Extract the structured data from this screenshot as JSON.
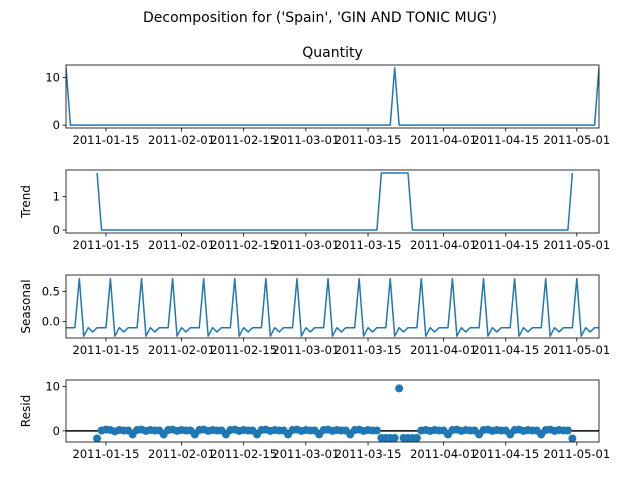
{
  "chart_data": {
    "type": "line",
    "title": "Decomposition for ('Spain', 'GIN AND TONIC MUG')",
    "x_range": [
      "2011-01-06",
      "2011-05-06"
    ],
    "x_ticks": [
      "2011-01-15",
      "2011-02-01",
      "2011-02-15",
      "2011-03-01",
      "2011-03-15",
      "2011-04-01",
      "2011-04-15",
      "2011-05-01"
    ],
    "panels": [
      {
        "key": "observed",
        "kind": "line",
        "title": "Quantity",
        "ylabel": "",
        "ylim": [
          -0.6,
          12.6
        ],
        "yticks": [
          "0",
          "10"
        ],
        "ytick_values": [
          0,
          10
        ],
        "points": [
          [
            "2011-01-06",
            12
          ],
          [
            "2011-01-07",
            0
          ],
          [
            "2011-03-20",
            0
          ],
          [
            "2011-03-21",
            12
          ],
          [
            "2011-03-22",
            0
          ],
          [
            "2011-05-05",
            0
          ],
          [
            "2011-05-06",
            12
          ]
        ]
      },
      {
        "key": "trend",
        "kind": "line",
        "title": "",
        "ylabel": "Trend",
        "ylim": [
          -0.09,
          1.8
        ],
        "yticks": [
          "0",
          "1"
        ],
        "ytick_values": [
          0,
          1
        ],
        "points": [
          [
            "2011-01-13",
            1.71
          ],
          [
            "2011-01-14",
            0
          ],
          [
            "2011-03-17",
            0
          ],
          [
            "2011-03-18",
            1.71
          ],
          [
            "2011-03-24",
            1.71
          ],
          [
            "2011-03-25",
            0
          ],
          [
            "2011-04-29",
            0
          ],
          [
            "2011-04-30",
            1.71
          ]
        ]
      },
      {
        "key": "seasonal",
        "kind": "line",
        "title": "",
        "ylabel": "Seasonal",
        "ylim": [
          -0.27,
          0.77
        ],
        "yticks": [
          "0.0",
          "0.5"
        ],
        "ytick_values": [
          0,
          0.5
        ],
        "period_days": 7,
        "start": "2011-01-06",
        "end": "2011-05-06",
        "pattern": [
          -0.1,
          -0.1,
          -0.1,
          0.71,
          -0.24,
          -0.1,
          -0.17
        ]
      },
      {
        "key": "resid",
        "kind": "scatter",
        "title": "",
        "ylabel": "Resid",
        "ylim": [
          -2.5,
          11.5
        ],
        "yticks": [
          "0",
          "10"
        ],
        "ytick_values": [
          0,
          10
        ],
        "baseline": 0,
        "start": "2011-01-13",
        "end": "2011-04-30",
        "values": [
          -1.7,
          0.1,
          0.3,
          0.2,
          -0.1,
          0.2,
          0.1,
          0.1,
          -0.8,
          0.2,
          0.3,
          0.0,
          0.2,
          0.1,
          0.1,
          -0.8,
          0.2,
          0.3,
          0.0,
          0.2,
          0.1,
          0.1,
          -0.8,
          0.2,
          0.3,
          0.0,
          0.2,
          0.1,
          0.1,
          -0.8,
          0.2,
          0.3,
          0.0,
          0.2,
          0.1,
          0.1,
          -0.8,
          0.2,
          0.3,
          0.0,
          0.2,
          0.1,
          0.1,
          -0.8,
          0.2,
          0.3,
          0.0,
          0.2,
          0.1,
          0.1,
          -0.8,
          0.2,
          0.3,
          0.0,
          0.2,
          0.1,
          0.1,
          -0.8,
          0.2,
          0.3,
          0.0,
          0.2,
          0.1,
          0.1,
          -1.6,
          -1.6,
          -1.6,
          -1.6,
          9.6,
          -1.6,
          -1.6,
          -1.6,
          -1.6,
          0.1,
          0.2,
          0.0,
          0.2,
          0.1,
          0.1,
          -0.8,
          0.2,
          0.3,
          0.0,
          0.2,
          0.1,
          0.1,
          -0.8,
          0.2,
          0.3,
          0.0,
          0.2,
          0.1,
          0.1,
          -0.8,
          0.2,
          0.3,
          0.0,
          0.2,
          0.1,
          0.1,
          -0.8,
          0.2,
          0.3,
          0.0,
          0.2,
          0.1,
          0.1,
          -1.7
        ]
      }
    ],
    "colors": {
      "line": "#1f77b4",
      "axis": "#000000",
      "background": "#ffffff"
    }
  }
}
